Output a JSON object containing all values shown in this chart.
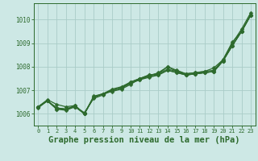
{
  "background_color": "#cde8e5",
  "plot_background_color": "#cde8e5",
  "grid_color": "#aaccc8",
  "line_color": "#2d6a2d",
  "marker_color": "#2d6a2d",
  "title": "Graphe pression niveau de la mer (hPa)",
  "title_fontsize": 7.5,
  "ylim": [
    1005.5,
    1010.7
  ],
  "xlim": [
    -0.5,
    23.5
  ],
  "yticks": [
    1006,
    1007,
    1008,
    1009,
    1010
  ],
  "xticks": [
    0,
    1,
    2,
    3,
    4,
    5,
    6,
    7,
    8,
    9,
    10,
    11,
    12,
    13,
    14,
    15,
    16,
    17,
    18,
    19,
    20,
    21,
    22,
    23
  ],
  "series": [
    [
      1006.3,
      1006.6,
      1006.4,
      1006.3,
      1006.35,
      1006.0,
      1006.75,
      1006.85,
      1006.95,
      1007.05,
      1007.25,
      1007.5,
      1007.6,
      1007.75,
      1008.0,
      1007.85,
      1007.7,
      1007.75,
      1007.8,
      1007.85,
      1008.3,
      1009.0,
      1009.6,
      1010.3
    ],
    [
      1006.3,
      1006.55,
      1006.25,
      1006.2,
      1006.3,
      1006.05,
      1006.65,
      1006.8,
      1007.0,
      1007.1,
      1007.3,
      1007.45,
      1007.55,
      1007.65,
      1007.85,
      1007.75,
      1007.65,
      1007.7,
      1007.75,
      1007.8,
      1008.25,
      1008.9,
      1009.5,
      1010.2
    ],
    [
      1006.3,
      1006.55,
      1006.2,
      1006.2,
      1006.3,
      1006.0,
      1006.7,
      1006.85,
      1007.05,
      1007.15,
      1007.35,
      1007.5,
      1007.65,
      1007.7,
      1008.0,
      1007.8,
      1007.7,
      1007.75,
      1007.8,
      1007.95,
      1008.3,
      1009.05,
      1009.5,
      1010.2
    ],
    [
      1006.3,
      1006.55,
      1006.25,
      1006.2,
      1006.35,
      1006.0,
      1006.7,
      1006.85,
      1007.0,
      1007.1,
      1007.35,
      1007.5,
      1007.65,
      1007.7,
      1007.9,
      1007.8,
      1007.65,
      1007.7,
      1007.75,
      1007.8,
      1008.25,
      1008.9,
      1009.5,
      1010.2
    ],
    [
      1006.25,
      1006.55,
      1006.2,
      1006.15,
      1006.3,
      1006.0,
      1006.7,
      1006.85,
      1007.0,
      1007.1,
      1007.3,
      1007.45,
      1007.6,
      1007.65,
      1007.85,
      1007.75,
      1007.65,
      1007.7,
      1007.75,
      1007.8,
      1008.25,
      1008.9,
      1009.5,
      1010.2
    ]
  ],
  "marker_size": 2.5,
  "line_width": 0.9
}
